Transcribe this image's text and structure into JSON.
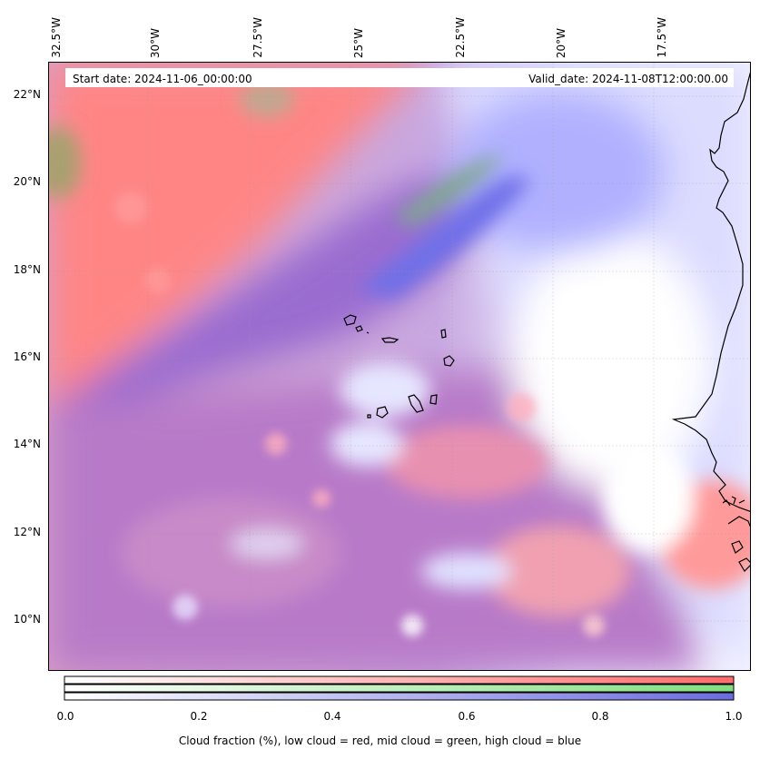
{
  "header": {
    "start_date": "Start date: 2024-11-06_00:00:00",
    "valid_date": "Valid_date: 2024-11-08T12:00:00.00"
  },
  "axes": {
    "lon_labels": [
      "32.5°W",
      "30°W",
      "27.5°W",
      "25°W",
      "22.5°W",
      "20°W",
      "17.5°W"
    ],
    "lat_labels": [
      "22°N",
      "20°N",
      "18°N",
      "16°N",
      "14°N",
      "12°N",
      "10°N"
    ]
  },
  "colorbar": {
    "ticks": [
      "0.0",
      "0.2",
      "0.4",
      "0.6",
      "0.8",
      "1.0"
    ],
    "label": "Cloud fraction (%), low cloud = red, mid cloud = green, high cloud = blue",
    "low_color": "#ff6b6b",
    "mid_color": "#7fe07f",
    "high_color": "#6b6bdf"
  },
  "colors": {
    "low_cloud": "#ff7b7b",
    "mid_cloud": "#7fae8a",
    "high_cloud": "#8f7fe0",
    "clear": "#ffffff"
  }
}
